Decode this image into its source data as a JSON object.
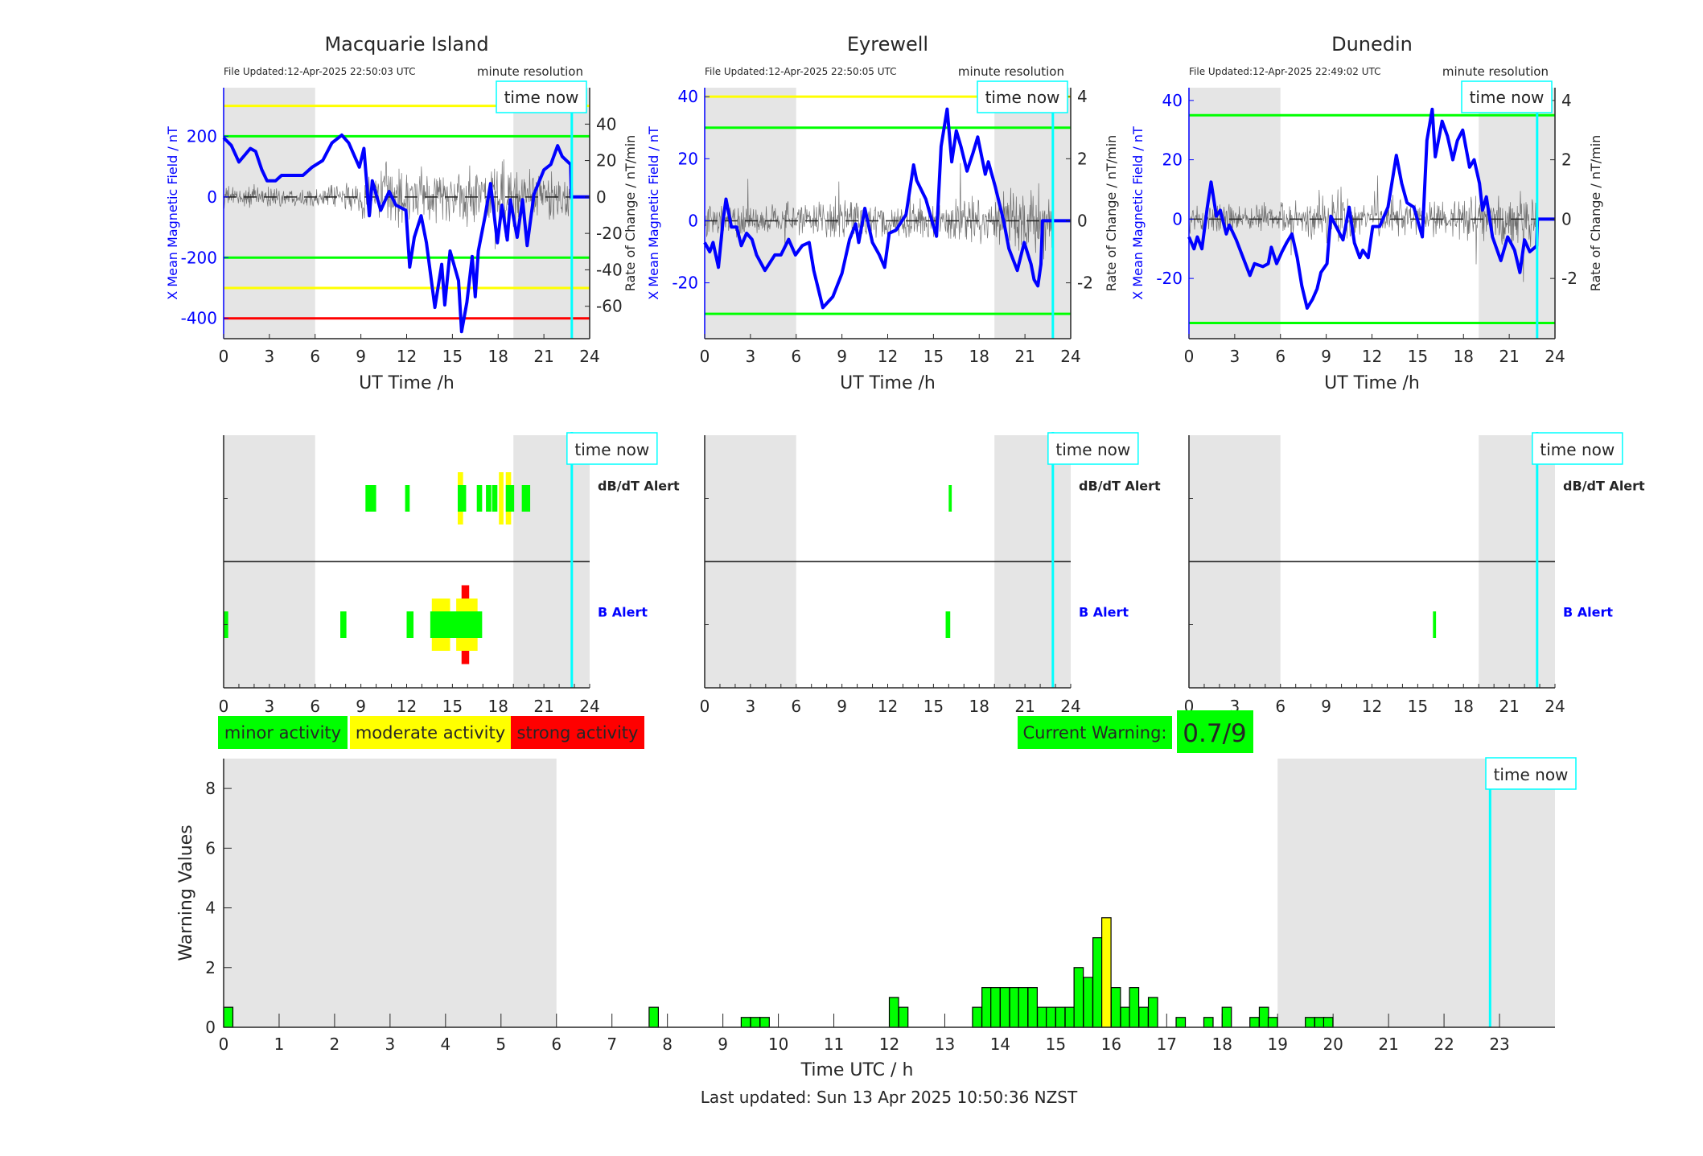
{
  "common": {
    "xticks": [
      0,
      3,
      6,
      9,
      12,
      15,
      18,
      21,
      24
    ],
    "xlabel": "UT Time /h",
    "time_now_label": "time now",
    "time_now_hour": 22.83,
    "night": [
      [
        0,
        6
      ],
      [
        19,
        24
      ]
    ],
    "dbdt_alert_label": "dB/dT Alert",
    "b_alert_label": "B Alert",
    "colors": {
      "minor": "#00ff00",
      "moderate": "#ffff00",
      "strong": "#ff0000",
      "field": "#0000ff",
      "now": "#00ffff",
      "night": "#e5e5e5"
    }
  },
  "stations": [
    {
      "name": "Macquarie Island",
      "file_updated": "File Updated:12-Apr-2025 22:50:03 UTC",
      "resolution": "minute resolution",
      "left_label": "X Mean Magnetic Field / nT",
      "right_label": "Rate of Change / nT/min",
      "ylim": [
        -467,
        360
      ],
      "yticks": [
        -400,
        -200,
        0,
        200
      ],
      "y2lim": [
        -77.8,
        60
      ],
      "y2ticks": [
        -60,
        -40,
        -20,
        0,
        20,
        40
      ],
      "thresholds": [
        {
          "value": 300,
          "color": "#ffff00"
        },
        {
          "value": 200,
          "color": "#00ff00"
        },
        {
          "value": -200,
          "color": "#00ff00"
        },
        {
          "value": -300,
          "color": "#ffff00"
        },
        {
          "value": -400,
          "color": "#ff0000"
        }
      ],
      "x_field": [
        [
          0,
          195
        ],
        [
          0.5,
          170
        ],
        [
          1,
          115
        ],
        [
          1.75,
          160
        ],
        [
          2.1,
          150
        ],
        [
          2.5,
          90
        ],
        [
          2.85,
          53
        ],
        [
          3.4,
          53
        ],
        [
          3.8,
          71
        ],
        [
          5.2,
          71
        ],
        [
          5.8,
          98
        ],
        [
          6.5,
          120
        ],
        [
          7.1,
          178
        ],
        [
          7.75,
          204
        ],
        [
          8.2,
          178
        ],
        [
          8.9,
          98
        ],
        [
          9.2,
          160
        ],
        [
          9.55,
          -62
        ],
        [
          9.75,
          53
        ],
        [
          10.3,
          -44
        ],
        [
          10.85,
          18
        ],
        [
          11.3,
          -27
        ],
        [
          11.95,
          -44
        ],
        [
          12.2,
          -231
        ],
        [
          12.5,
          -133
        ],
        [
          12.95,
          -62
        ],
        [
          13.3,
          -151
        ],
        [
          13.85,
          -364
        ],
        [
          14.3,
          -222
        ],
        [
          14.5,
          -356
        ],
        [
          14.85,
          -178
        ],
        [
          15.4,
          -276
        ],
        [
          15.6,
          -444
        ],
        [
          15.95,
          -347
        ],
        [
          16.3,
          -196
        ],
        [
          16.5,
          -329
        ],
        [
          16.7,
          -178
        ],
        [
          17.15,
          -62
        ],
        [
          17.5,
          44
        ],
        [
          17.95,
          -151
        ],
        [
          18.25,
          -27
        ],
        [
          18.6,
          -142
        ],
        [
          18.8,
          -9
        ],
        [
          19.25,
          -133
        ],
        [
          19.6,
          -9
        ],
        [
          19.9,
          -160
        ],
        [
          20.35,
          9
        ],
        [
          21,
          89
        ],
        [
          21.45,
          107
        ],
        [
          21.9,
          169
        ],
        [
          22.2,
          133
        ],
        [
          22.75,
          107
        ],
        [
          22.8,
          0
        ],
        [
          24,
          0
        ]
      ],
      "dbdt_envelope": [
        6,
        6,
        6,
        6,
        5,
        5,
        5,
        6,
        8,
        15,
        18,
        15,
        14,
        14,
        15,
        18,
        20,
        20,
        22,
        20,
        18,
        16,
        14,
        10
      ],
      "alerts": {
        "dbdt": [
          {
            "start": 9.3,
            "end": 10.0,
            "level": "minor"
          },
          {
            "start": 11.9,
            "end": 12.2,
            "level": "minor"
          },
          {
            "start": 15.35,
            "end": 15.7,
            "level": "moderate"
          },
          {
            "start": 15.35,
            "end": 15.9,
            "level": "minor"
          },
          {
            "start": 16.6,
            "end": 16.95,
            "level": "minor"
          },
          {
            "start": 17.2,
            "end": 17.55,
            "level": "minor"
          },
          {
            "start": 17.6,
            "end": 17.95,
            "level": "minor"
          },
          {
            "start": 18.05,
            "end": 18.35,
            "level": "moderate"
          },
          {
            "start": 18.5,
            "end": 18.85,
            "level": "moderate"
          },
          {
            "start": 18.5,
            "end": 19.05,
            "level": "minor"
          },
          {
            "start": 19.55,
            "end": 20.1,
            "level": "minor"
          }
        ],
        "b": [
          {
            "start": 0,
            "end": 0.3,
            "level": "minor"
          },
          {
            "start": 7.65,
            "end": 8.05,
            "level": "minor"
          },
          {
            "start": 12.0,
            "end": 12.45,
            "level": "minor"
          },
          {
            "start": 15.6,
            "end": 16.1,
            "level": "strong"
          },
          {
            "start": 13.65,
            "end": 14.85,
            "level": "moderate"
          },
          {
            "start": 15.25,
            "end": 16.65,
            "level": "moderate"
          },
          {
            "start": 13.55,
            "end": 16.95,
            "level": "minor"
          }
        ]
      }
    },
    {
      "name": "Eyrewell",
      "file_updated": "File Updated:12-Apr-2025 22:50:05 UTC",
      "resolution": "minute resolution",
      "left_label": "X Mean Magnetic Field / nT",
      "right_label": "Rate of Change / nT/min",
      "ylim": [
        -38,
        42.9
      ],
      "yticks": [
        -20,
        0,
        20,
        40
      ],
      "y2lim": [
        -3.8,
        4.29
      ],
      "y2ticks": [
        -2,
        0,
        2,
        4
      ],
      "thresholds": [
        {
          "value": 40,
          "color": "#ffff00"
        },
        {
          "value": 30,
          "color": "#00ff00"
        },
        {
          "value": -30,
          "color": "#00ff00"
        }
      ],
      "x_field": [
        [
          0,
          -7
        ],
        [
          0.33,
          -10
        ],
        [
          0.55,
          -7
        ],
        [
          0.9,
          -15
        ],
        [
          1.2,
          0
        ],
        [
          1.4,
          7
        ],
        [
          1.75,
          -2
        ],
        [
          2.1,
          -2
        ],
        [
          2.4,
          -8
        ],
        [
          2.75,
          -4
        ],
        [
          3.1,
          -6
        ],
        [
          3.4,
          -11
        ],
        [
          3.95,
          -16
        ],
        [
          4.6,
          -11
        ],
        [
          5.0,
          -11
        ],
        [
          5.5,
          -6
        ],
        [
          5.95,
          -11
        ],
        [
          6.4,
          -8
        ],
        [
          6.85,
          -7
        ],
        [
          7.15,
          -16
        ],
        [
          7.75,
          -28
        ],
        [
          8.4,
          -24.5
        ],
        [
          9.0,
          -17
        ],
        [
          9.5,
          -6
        ],
        [
          9.9,
          -1
        ],
        [
          10.1,
          -7
        ],
        [
          10.5,
          4
        ],
        [
          11,
          -7
        ],
        [
          11.45,
          -11
        ],
        [
          11.8,
          -15
        ],
        [
          12.1,
          -4
        ],
        [
          12.55,
          -3
        ],
        [
          13.2,
          2
        ],
        [
          13.7,
          18
        ],
        [
          13.9,
          13
        ],
        [
          14.5,
          7
        ],
        [
          14.9,
          0
        ],
        [
          15.2,
          -5
        ],
        [
          15.5,
          24
        ],
        [
          15.9,
          36
        ],
        [
          16.2,
          19
        ],
        [
          16.5,
          29
        ],
        [
          16.8,
          24
        ],
        [
          17.2,
          16
        ],
        [
          17.6,
          22
        ],
        [
          17.9,
          27
        ],
        [
          18.4,
          15
        ],
        [
          18.6,
          19
        ],
        [
          19.05,
          11
        ],
        [
          19.3,
          6
        ],
        [
          19.6,
          0
        ],
        [
          19.95,
          -9
        ],
        [
          20.5,
          -16
        ],
        [
          20.95,
          -7
        ],
        [
          21.4,
          -14
        ],
        [
          21.6,
          -19
        ],
        [
          21.85,
          -21
        ],
        [
          22.05,
          -14
        ],
        [
          22.15,
          0
        ],
        [
          24,
          0
        ]
      ],
      "dbdt_envelope": [
        0.6,
        0.8,
        0.6,
        0.5,
        0.5,
        0.5,
        0.6,
        0.6,
        0.8,
        0.8,
        0.8,
        0.6,
        0.6,
        0.7,
        0.6,
        0.6,
        0.7,
        0.7,
        0.8,
        0.9,
        1.0,
        1.0,
        1.0,
        0.5
      ],
      "alerts": {
        "dbdt": [
          {
            "start": 16.0,
            "end": 16.2,
            "level": "minor"
          }
        ],
        "b": [
          {
            "start": 15.8,
            "end": 16.1,
            "level": "minor"
          }
        ]
      }
    },
    {
      "name": "Dunedin",
      "file_updated": "File Updated:12-Apr-2025 22:49:02 UTC",
      "resolution": "minute resolution",
      "left_label": "X Mean Magnetic Field / nT",
      "right_label": "Rate of Change / nT/min",
      "ylim": [
        -40.3,
        44.3
      ],
      "yticks": [
        -20,
        0,
        20,
        40
      ],
      "y2lim": [
        -4.03,
        4.43
      ],
      "y2ticks": [
        -2,
        0,
        2,
        4
      ],
      "thresholds": [
        {
          "value": 35,
          "color": "#00ff00"
        },
        {
          "value": -35,
          "color": "#00ff00"
        }
      ],
      "x_field": [
        [
          0,
          -6
        ],
        [
          0.33,
          -10
        ],
        [
          0.55,
          -6
        ],
        [
          0.85,
          -10
        ],
        [
          1.2,
          4
        ],
        [
          1.45,
          12.5
        ],
        [
          1.8,
          1
        ],
        [
          2.05,
          3
        ],
        [
          2.45,
          -5
        ],
        [
          2.65,
          -2
        ],
        [
          3.1,
          -7
        ],
        [
          3.55,
          -13
        ],
        [
          4.0,
          -19
        ],
        [
          4.3,
          -15
        ],
        [
          4.85,
          -16
        ],
        [
          5.2,
          -15
        ],
        [
          5.4,
          -9.5
        ],
        [
          5.75,
          -15
        ],
        [
          6.1,
          -11
        ],
        [
          6.4,
          -8
        ],
        [
          6.75,
          -5
        ],
        [
          7.1,
          -13
        ],
        [
          7.4,
          -22.5
        ],
        [
          7.75,
          -30
        ],
        [
          8.1,
          -27
        ],
        [
          8.4,
          -23.5
        ],
        [
          8.65,
          -18
        ],
        [
          9.05,
          -15
        ],
        [
          9.3,
          1
        ],
        [
          9.6,
          -2
        ],
        [
          10.1,
          -7
        ],
        [
          10.5,
          4
        ],
        [
          10.85,
          -8
        ],
        [
          11.2,
          -13
        ],
        [
          11.4,
          -10.5
        ],
        [
          11.75,
          -13
        ],
        [
          12.05,
          -2.5
        ],
        [
          12.5,
          -2.5
        ],
        [
          13.05,
          4
        ],
        [
          13.6,
          21.5
        ],
        [
          13.95,
          12
        ],
        [
          14.3,
          5.5
        ],
        [
          14.75,
          4
        ],
        [
          15.3,
          -6
        ],
        [
          15.6,
          26.5
        ],
        [
          15.95,
          37
        ],
        [
          16.15,
          21
        ],
        [
          16.6,
          33
        ],
        [
          16.95,
          28
        ],
        [
          17.3,
          20
        ],
        [
          17.6,
          26.5
        ],
        [
          17.95,
          30
        ],
        [
          18.4,
          17.5
        ],
        [
          18.7,
          20
        ],
        [
          19.05,
          12
        ],
        [
          19.25,
          3
        ],
        [
          19.5,
          7.5
        ],
        [
          19.9,
          -6
        ],
        [
          20.45,
          -14
        ],
        [
          20.9,
          -6
        ],
        [
          21.35,
          -10.5
        ],
        [
          21.7,
          -18
        ],
        [
          22.0,
          -7
        ],
        [
          22.35,
          -11
        ],
        [
          22.8,
          -9
        ],
        [
          22.85,
          0
        ],
        [
          24,
          0
        ]
      ],
      "dbdt_envelope": [
        0.5,
        0.7,
        0.6,
        0.5,
        0.5,
        0.5,
        0.6,
        0.6,
        0.8,
        0.9,
        0.8,
        0.6,
        0.6,
        0.7,
        0.6,
        0.6,
        0.7,
        0.7,
        0.8,
        0.9,
        1.0,
        1.0,
        1.0,
        0.5
      ],
      "alerts": {
        "dbdt": [],
        "b": [
          {
            "start": 16.0,
            "end": 16.2,
            "level": "minor"
          }
        ]
      }
    }
  ],
  "legend": [
    {
      "label": "minor activity",
      "color": "#00ff00"
    },
    {
      "label": "moderate activity",
      "color": "#ffff00"
    },
    {
      "label": "strong activity",
      "color": "#ff0000"
    }
  ],
  "current_warning": {
    "label": "Current Warning:",
    "value": "0.7/9",
    "color": "#00ff00"
  },
  "chart_data": {
    "type": "bar",
    "title": "",
    "xlabel": "Time UTC / h",
    "ylabel": "Warning Values",
    "xlim": [
      0,
      24
    ],
    "ylim": [
      0,
      9
    ],
    "xticks": [
      0,
      1,
      2,
      3,
      4,
      5,
      6,
      7,
      8,
      9,
      10,
      11,
      12,
      13,
      14,
      15,
      16,
      17,
      18,
      19,
      20,
      21,
      22,
      23
    ],
    "yticks": [
      0,
      2,
      4,
      6,
      8
    ],
    "bar_width_hours": 0.1667,
    "x": [
      0,
      7.67,
      9.33,
      9.5,
      9.67,
      12,
      12.17,
      13.5,
      13.67,
      13.83,
      14,
      14.17,
      14.33,
      14.5,
      14.67,
      14.83,
      15,
      15.17,
      15.33,
      15.5,
      15.67,
      15.83,
      16,
      16.17,
      16.33,
      16.5,
      16.67,
      17.17,
      17.67,
      18,
      18.5,
      18.67,
      18.83,
      19.5,
      19.67,
      19.83
    ],
    "values": [
      0.67,
      0.67,
      0.33,
      0.33,
      0.33,
      1,
      0.67,
      0.67,
      1.33,
      1.33,
      1.33,
      1.33,
      1.33,
      1.33,
      0.67,
      0.67,
      0.67,
      0.67,
      2,
      1.67,
      3,
      3.67,
      1.33,
      0.67,
      1.33,
      0.67,
      1,
      0.33,
      0.33,
      0.67,
      0.33,
      0.67,
      0.33,
      0.33,
      0.33,
      0.33
    ],
    "moderate_indices": [
      21
    ],
    "night": [
      [
        0,
        6
      ],
      [
        19,
        24
      ]
    ],
    "time_now_hour": 22.83
  },
  "footer": "Last updated: Sun 13 Apr 2025 10:50:36 NZST"
}
